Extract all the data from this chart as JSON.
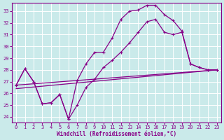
{
  "xlabel": "Windchill (Refroidissement éolien,°C)",
  "bg_color": "#caeaea",
  "line_color": "#880088",
  "grid_color": "#ffffff",
  "xlim": [
    -0.5,
    23.5
  ],
  "ylim": [
    23.5,
    33.7
  ],
  "yticks": [
    24,
    25,
    26,
    27,
    28,
    29,
    30,
    31,
    32,
    33
  ],
  "xticks": [
    0,
    1,
    2,
    3,
    4,
    5,
    6,
    7,
    8,
    9,
    10,
    11,
    12,
    13,
    14,
    15,
    16,
    17,
    18,
    19,
    20,
    21,
    22,
    23
  ],
  "line1_x": [
    0,
    1,
    2,
    3,
    4,
    5,
    6,
    7,
    8,
    9,
    10,
    11,
    12,
    13,
    14,
    15,
    16,
    17,
    18,
    19,
    20,
    21,
    22,
    23
  ],
  "line1_y": [
    26.7,
    28.1,
    27.0,
    25.1,
    25.2,
    25.9,
    23.8,
    25.0,
    26.5,
    27.2,
    28.2,
    28.8,
    29.5,
    30.3,
    31.2,
    32.1,
    32.3,
    31.2,
    31.0,
    31.2,
    28.5,
    28.2,
    28.0,
    28.0
  ],
  "line2_x": [
    0,
    1,
    2,
    3,
    4,
    5,
    6,
    7,
    8,
    9,
    10,
    11,
    12,
    13,
    14,
    15,
    16,
    17,
    18,
    19,
    20,
    21,
    22,
    23
  ],
  "line2_y": [
    26.7,
    28.1,
    27.0,
    25.1,
    25.2,
    25.9,
    23.8,
    27.1,
    28.5,
    29.5,
    29.5,
    30.7,
    32.3,
    33.0,
    33.1,
    33.5,
    33.5,
    32.7,
    32.2,
    31.3,
    28.5,
    28.2,
    28.0,
    28.0
  ],
  "line3_x": [
    0,
    23
  ],
  "line3_y": [
    26.7,
    28.0
  ],
  "line4_x": [
    0,
    23
  ],
  "line4_y": [
    26.4,
    28.0
  ]
}
